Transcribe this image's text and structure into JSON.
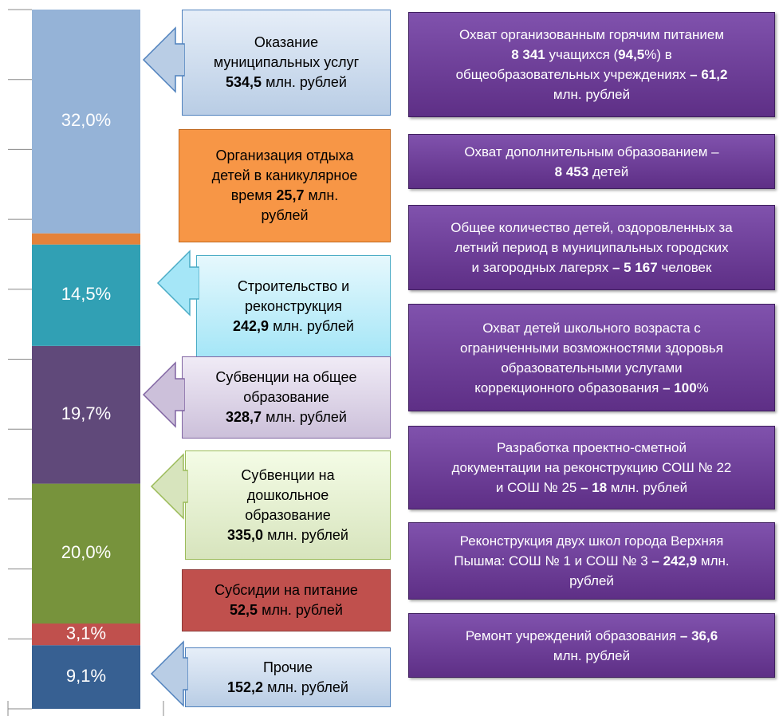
{
  "chart_data": {
    "type": "stacked_bar",
    "ylim": [
      0,
      100
    ],
    "yticks": [
      0,
      10,
      20,
      30,
      40,
      50,
      60,
      70,
      80,
      90,
      100
    ],
    "segments": [
      {
        "value": 9.1,
        "value_label": "9,1%",
        "color": "#376092"
      },
      {
        "value": 3.1,
        "value_label": "3,1%",
        "color": "#c0504d"
      },
      {
        "value": 20.0,
        "value_label": "20,0%",
        "color": "#77933c"
      },
      {
        "value": 19.7,
        "value_label": "19,7%",
        "color": "#60497a"
      },
      {
        "value": 14.5,
        "value_label": "14,5%",
        "color": "#31a0b4"
      },
      {
        "value": 1.6,
        "color": "#e4823a"
      },
      {
        "value": 32.0,
        "value_label": "32,0%",
        "color": "#95b3d7"
      }
    ],
    "callouts": [
      {
        "lines": [
          [
            {
              "text": "Оказание"
            }
          ],
          [
            {
              "text": "муниципальных услуг"
            }
          ],
          [
            {
              "text": "534,5",
              "bold": true
            },
            {
              "text": " млн. рублей"
            }
          ]
        ]
      },
      {
        "lines": [
          [
            {
              "text": "Организация отдыха"
            }
          ],
          [
            {
              "text": "детей в каникулярное"
            }
          ],
          [
            {
              "text": "время "
            },
            {
              "text": "25,7",
              "bold": true
            },
            {
              "text": " млн."
            }
          ],
          [
            {
              "text": "рублей"
            }
          ]
        ]
      },
      {
        "lines": [
          [
            {
              "text": "Строительство и"
            }
          ],
          [
            {
              "text": "реконструкция"
            }
          ],
          [
            {
              "text": "242,9",
              "bold": true
            },
            {
              "text": " млн. рублей"
            }
          ]
        ]
      },
      {
        "lines": [
          [
            {
              "text": "Субвенции на общее"
            }
          ],
          [
            {
              "text": "образование"
            }
          ],
          [
            {
              "text": "328,7",
              "bold": true
            },
            {
              "text": " млн. рублей"
            }
          ]
        ]
      },
      {
        "lines": [
          [
            {
              "text": "Субвенции на"
            }
          ],
          [
            {
              "text": "дошкольное"
            }
          ],
          [
            {
              "text": "образование"
            }
          ],
          [
            {
              "text": "335,0",
              "bold": true
            },
            {
              "text": " млн. рублей"
            }
          ]
        ]
      },
      {
        "lines": [
          [
            {
              "text": "Субсидии на питание"
            }
          ],
          [
            {
              "text": "52,5",
              "bold": true
            },
            {
              "text": " млн. рублей"
            }
          ]
        ]
      },
      {
        "lines": [
          [
            {
              "text": "Прочие"
            }
          ],
          [
            {
              "text": "152,2",
              "bold": true
            },
            {
              "text": " млн. рублей"
            }
          ]
        ]
      }
    ],
    "notes": [
      {
        "lines": [
          [
            {
              "text": "Охват организованным горячим питанием"
            }
          ],
          [
            {
              "text": "8 341",
              "bold": true
            },
            {
              "text": " учащихся ("
            },
            {
              "text": "94,5",
              "bold": true
            },
            {
              "text": "%) в"
            }
          ],
          [
            {
              "text": "общеобразовательных учреждениях "
            },
            {
              "text": "– 61,2",
              "bold": true
            }
          ],
          [
            {
              "text": "млн. рублей"
            }
          ]
        ]
      },
      {
        "lines": [
          [
            {
              "text": "Охват дополнительным образованием –"
            }
          ],
          [
            {
              "text": "8 453",
              "bold": true
            },
            {
              "text": " детей"
            }
          ]
        ]
      },
      {
        "lines": [
          [
            {
              "text": "Общее количество детей, оздоровленных за"
            }
          ],
          [
            {
              "text": "летний период в муниципальных городских"
            }
          ],
          [
            {
              "text": "и загородных лагерях "
            },
            {
              "text": "– 5 167",
              "bold": true
            },
            {
              "text": " человек"
            }
          ]
        ]
      },
      {
        "lines": [
          [
            {
              "text": "Охват детей школьного возраста с"
            }
          ],
          [
            {
              "text": "ограниченными возможностями здоровья"
            }
          ],
          [
            {
              "text": "образовательными услугами"
            }
          ],
          [
            {
              "text": "коррекционного образования "
            },
            {
              "text": "– 100",
              "bold": true
            },
            {
              "text": "%"
            }
          ]
        ]
      },
      {
        "lines": [
          [
            {
              "text": "Разработка проектно-сметной"
            }
          ],
          [
            {
              "text": "документации на реконструкцию СОШ № 22"
            }
          ],
          [
            {
              "text": "и СОШ № 25 "
            },
            {
              "text": "– 18",
              "bold": true
            },
            {
              "text": " млн. рублей"
            }
          ]
        ]
      },
      {
        "lines": [
          [
            {
              "text": "Реконструкция двух школ города Верхняя"
            }
          ],
          [
            {
              "text": "Пышма: СОШ № 1 и СОШ № 3 "
            },
            {
              "text": "– 242,9",
              "bold": true
            },
            {
              "text": " млн."
            }
          ],
          [
            {
              "text": "рублей"
            }
          ]
        ]
      },
      {
        "lines": [
          [
            {
              "text": "Ремонт учреждений образования "
            },
            {
              "text": "– 36,6",
              "bold": true
            }
          ],
          [
            {
              "text": "млн. рублей"
            }
          ]
        ]
      }
    ]
  }
}
